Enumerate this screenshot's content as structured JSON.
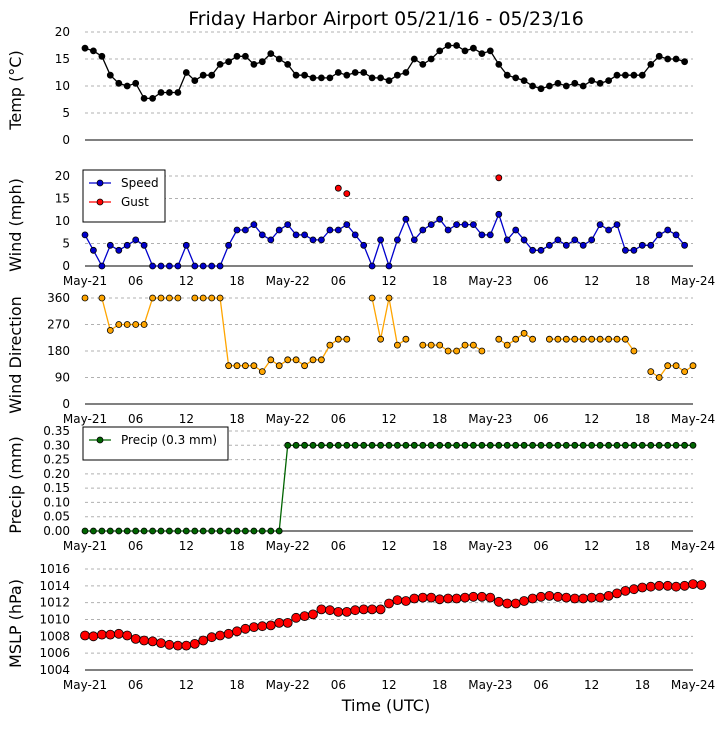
{
  "title": "Friday Harbor Airport 05/21/16 - 05/23/16",
  "x_axis_label": "Time (UTC)",
  "x_ticks": [
    {
      "hour": 0,
      "label": "May-21"
    },
    {
      "hour": 6,
      "label": "06"
    },
    {
      "hour": 12,
      "label": "12"
    },
    {
      "hour": 18,
      "label": "18"
    },
    {
      "hour": 24,
      "label": "May-22"
    },
    {
      "hour": 30,
      "label": "06"
    },
    {
      "hour": 36,
      "label": "12"
    },
    {
      "hour": 42,
      "label": "18"
    },
    {
      "hour": 48,
      "label": "May-23"
    },
    {
      "hour": 54,
      "label": "06"
    },
    {
      "hour": 60,
      "label": "12"
    },
    {
      "hour": 66,
      "label": "18"
    },
    {
      "hour": 72,
      "label": "May-24"
    }
  ],
  "chart_data": [
    {
      "id": "temp",
      "type": "line",
      "ylabel": "Temp ($^\\circ$C)",
      "ylabel_display": "Temp (°C)",
      "ylim": [
        0,
        20
      ],
      "yticks": [
        0,
        5,
        10,
        15,
        20
      ],
      "grid": true,
      "legend": null,
      "x_start_hour": 0,
      "x_step_hour": 1,
      "series": [
        {
          "name": "",
          "color": "#000000",
          "marker_color": "#000000",
          "values": [
            17,
            16.5,
            15.5,
            12,
            10.5,
            10,
            10.5,
            7.7,
            7.7,
            8.8,
            8.8,
            8.8,
            12.5,
            11,
            12,
            12,
            14,
            14.5,
            15.5,
            15.5,
            14,
            14.5,
            16,
            15,
            14,
            12,
            12,
            11.5,
            11.5,
            11.5,
            12.5,
            12,
            12.5,
            12.5,
            11.5,
            11.5,
            11,
            12,
            12.5,
            15,
            14,
            15,
            16.5,
            17.5,
            17.5,
            16.5,
            17,
            16,
            16.5,
            14,
            12,
            11.5,
            11,
            10,
            9.5,
            10,
            10.5,
            10,
            10.5,
            10,
            11,
            10.5,
            11,
            12,
            12,
            12,
            12,
            14,
            15.5,
            15,
            15,
            14.5
          ]
        }
      ]
    },
    {
      "id": "wind",
      "type": "line",
      "ylabel": "Wind (mph)",
      "ylim": [
        0,
        20
      ],
      "yticks": [
        0,
        5,
        10,
        15,
        20
      ],
      "grid": true,
      "legend": "top-left",
      "x_start_hour": 0,
      "x_step_hour": 1,
      "series": [
        {
          "name": "Speed",
          "color": "#0000cc",
          "marker_color": "#0000cc",
          "values": [
            6.9,
            3.5,
            0,
            4.6,
            3.5,
            4.6,
            5.8,
            4.6,
            0,
            0,
            0,
            0,
            4.6,
            0,
            0,
            0,
            0,
            4.6,
            8,
            8,
            9.2,
            6.9,
            5.8,
            8,
            9.2,
            6.9,
            6.9,
            5.8,
            5.8,
            8,
            8,
            9.2,
            6.9,
            4.6,
            0,
            5.8,
            0,
            5.8,
            10.4,
            5.8,
            8,
            9.2,
            10.4,
            8,
            9.2,
            9.2,
            9.2,
            6.9,
            6.9,
            11.5,
            5.8,
            8,
            5.8,
            3.5,
            3.5,
            4.6,
            5.8,
            4.6,
            5.8,
            4.6,
            5.8,
            9.2,
            8,
            9.2,
            3.5,
            3.5,
            4.6,
            4.6,
            6.9,
            8,
            6.9,
            4.6
          ]
        },
        {
          "name": "Gust",
          "color": "#ff0000",
          "marker_color": "#ff0000",
          "line": false,
          "points": [
            {
              "hour": 30,
              "value": 17.3
            },
            {
              "hour": 31,
              "value": 16.1
            },
            {
              "hour": 49,
              "value": 19.6
            }
          ]
        }
      ]
    },
    {
      "id": "wdir",
      "type": "line",
      "ylabel": "Wind Direction",
      "ylim": [
        0,
        360
      ],
      "yticks": [
        0,
        90,
        180,
        270,
        360
      ],
      "grid": true,
      "legend": null,
      "x_start_hour": 0,
      "x_step_hour": 1,
      "series": [
        {
          "name": "",
          "color": "#ffa500",
          "marker_color": "#ffa500",
          "values": [
            360,
            null,
            360,
            250,
            270,
            270,
            270,
            270,
            360,
            360,
            360,
            360,
            null,
            360,
            360,
            360,
            360,
            130,
            130,
            130,
            130,
            110,
            150,
            130,
            150,
            150,
            130,
            150,
            150,
            200,
            220,
            220,
            null,
            null,
            360,
            220,
            360,
            200,
            220,
            null,
            200,
            200,
            200,
            180,
            180,
            200,
            200,
            180,
            null,
            220,
            200,
            220,
            240,
            220,
            null,
            220,
            220,
            220,
            220,
            220,
            220,
            220,
            220,
            220,
            220,
            180,
            null,
            110,
            90,
            130,
            130,
            110,
            130
          ]
        }
      ]
    },
    {
      "id": "precip",
      "type": "line",
      "ylabel": "Precip (mm)",
      "ylim": [
        0,
        0.35
      ],
      "yticks": [
        0.0,
        0.05,
        0.1,
        0.15,
        0.2,
        0.25,
        0.3,
        0.35
      ],
      "grid": true,
      "legend": "top-left",
      "x_start_hour": 0,
      "x_step_hour": 1,
      "series": [
        {
          "name": "Precip (0.3 mm)",
          "color": "#006400",
          "marker_color": "#006400",
          "values": [
            0,
            0,
            0,
            0,
            0,
            0,
            0,
            0,
            0,
            0,
            0,
            0,
            0,
            0,
            0,
            0,
            0,
            0,
            0,
            0,
            0,
            0,
            0,
            0,
            0.3,
            0.3,
            0.3,
            0.3,
            0.3,
            0.3,
            0.3,
            0.3,
            0.3,
            0.3,
            0.3,
            0.3,
            0.3,
            0.3,
            0.3,
            0.3,
            0.3,
            0.3,
            0.3,
            0.3,
            0.3,
            0.3,
            0.3,
            0.3,
            0.3,
            0.3,
            0.3,
            0.3,
            0.3,
            0.3,
            0.3,
            0.3,
            0.3,
            0.3,
            0.3,
            0.3,
            0.3,
            0.3,
            0.3,
            0.3,
            0.3,
            0.3,
            0.3,
            0.3,
            0.3,
            0.3,
            0.3,
            0.3,
            0.3
          ]
        }
      ]
    },
    {
      "id": "mslp",
      "type": "scatter",
      "ylabel": "MSLP (hPa)",
      "ylim": [
        1004,
        1016
      ],
      "yticks": [
        1004,
        1006,
        1008,
        1010,
        1012,
        1014,
        1016
      ],
      "grid": true,
      "legend": null,
      "x_start_hour": 0,
      "x_step_hour": 1,
      "series": [
        {
          "name": "",
          "color": "#ff0000",
          "marker_color": "#ff0000",
          "values": [
            1008.1,
            1008.0,
            1008.2,
            1008.2,
            1008.3,
            1008.1,
            1007.7,
            1007.5,
            1007.4,
            1007.2,
            1007.0,
            1006.9,
            1006.9,
            1007.1,
            1007.5,
            1007.9,
            1008.1,
            1008.3,
            1008.6,
            1008.9,
            1009.1,
            1009.2,
            1009.3,
            1009.6,
            1009.6,
            1010.2,
            1010.4,
            1010.6,
            1011.2,
            1011.1,
            1010.9,
            1010.9,
            1011.1,
            1011.2,
            1011.2,
            1011.2,
            1011.9,
            1012.3,
            1012.2,
            1012.5,
            1012.6,
            1012.6,
            1012.4,
            1012.5,
            1012.5,
            1012.6,
            1012.7,
            1012.7,
            1012.6,
            1012.1,
            1011.9,
            1011.9,
            1012.2,
            1012.5,
            1012.7,
            1012.8,
            1012.7,
            1012.6,
            1012.5,
            1012.5,
            1012.6,
            1012.6,
            1012.8,
            1013.1,
            1013.4,
            1013.6,
            1013.8,
            1013.9,
            1014.0,
            1014.0,
            1013.9,
            1014.0,
            1014.2,
            1014.1
          ]
        }
      ]
    }
  ]
}
